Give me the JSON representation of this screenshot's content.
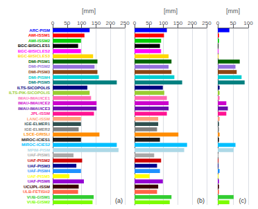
{
  "chart_data": [
    {
      "type": "bar",
      "orientation": "horizontal",
      "categories": [
        "ARC-PISM",
        "AWI-ISSM1",
        "AWI-ISSM2",
        "BGC-BISICLES1",
        "BGC-BISICLES2",
        "BGC-BISICLES3",
        "DMI-PISM1",
        "DMI-PISM2",
        "DMI-PISM3",
        "DMI-PISM4",
        "DMI-PISM5",
        "ILTS-SICOPOLIS",
        "ILTS-PIK-SICOPOLIS",
        "IMAU-IMAUICE1",
        "IMAU-IMAUICE2",
        "IMAU-IMAUICE3",
        "JPL-ISSM",
        "LANC-ISSM",
        "IGE-ELMER1",
        "IGE-ELMER2",
        "LSCE-GRISLI",
        "MIROC-ICIES1",
        "MIROC-ICIES2",
        "MPIM-PISM",
        "UAF-PISM1",
        "UAF-PISM2",
        "UAF-PISM3",
        "UAF-PISM4",
        "UAF-PISM5",
        "UAF-PISM6",
        "UCIJPL-ISSM",
        "ULB-FETISH2",
        "VUB-GISM1",
        "VUB-GISM2"
      ],
      "values": [
        128,
        110,
        98,
        88,
        98,
        140,
        155,
        145,
        155,
        160,
        222,
        120,
        128,
        133,
        152,
        152,
        143,
        98,
        98,
        90,
        162,
        98,
        222,
        228,
        72,
        102,
        82,
        98,
        58,
        108,
        90,
        88,
        142,
        138
      ],
      "colors": [
        "#0000FF",
        "#FF0000",
        "#00CC00",
        "#000000",
        "#FF00FF",
        "#FFD700",
        "#006400",
        "#9370DB",
        "#8B4513",
        "#00CED1",
        "#008080",
        "#000080",
        "#9ACD32",
        "#FF69B4",
        "#CC00CC",
        "#6A0DAD",
        "#FF1493",
        "#FFA07A",
        "#2F4F4F",
        "#808080",
        "#FF8C00",
        "#1C1C1C",
        "#00BFFF",
        "#ADD8E6",
        "#A9A9A9",
        "#CC0000",
        "#00008B",
        "#1E90FF",
        "#FFFF00",
        "#9400D3",
        "#3B0000",
        "#FF6347",
        "#32CD32",
        "#7CFC00"
      ],
      "xlabel": "[mm]",
      "xlim": [
        0,
        250
      ],
      "xticks": [
        0,
        50,
        100,
        150,
        200,
        250
      ],
      "grid": true,
      "annotation": "(a)"
    },
    {
      "type": "bar",
      "orientation": "horizontal",
      "categories": [
        "ARC-PISM",
        "AWI-ISSM1",
        "AWI-ISSM2",
        "BGC-BISICLES1",
        "BGC-BISICLES2",
        "BGC-BISICLES3",
        "DMI-PISM1",
        "DMI-PISM2",
        "DMI-PISM3",
        "DMI-PISM4",
        "DMI-PISM5",
        "ILTS-SICOPOLIS",
        "ILTS-PIK-SICOPOLIS",
        "IMAU-IMAUICE1",
        "IMAU-IMAUICE2",
        "IMAU-IMAUICE3",
        "JPL-ISSM",
        "LANC-ISSM",
        "IGE-ELMER1",
        "IGE-ELMER2",
        "LSCE-GRISLI",
        "MIROC-ICIES1",
        "MIROC-ICIES2",
        "MPIM-PISM",
        "UAF-PISM1",
        "UAF-PISM2",
        "UAF-PISM3",
        "UAF-PISM4",
        "UAF-PISM5",
        "UAF-PISM6",
        "UCIJPL-ISSM",
        "ULB-FETISH2",
        "VUB-GISM1",
        "VUB-GISM2"
      ],
      "values": [
        112,
        102,
        92,
        88,
        92,
        118,
        128,
        118,
        128,
        138,
        165,
        98,
        103,
        112,
        118,
        118,
        112,
        82,
        82,
        78,
        152,
        88,
        182,
        172,
        68,
        92,
        78,
        88,
        52,
        98,
        82,
        78,
        128,
        122
      ],
      "colors": [
        "#0000FF",
        "#FF0000",
        "#00CC00",
        "#000000",
        "#FF00FF",
        "#FFD700",
        "#006400",
        "#9370DB",
        "#8B4513",
        "#00CED1",
        "#008080",
        "#000080",
        "#9ACD32",
        "#FF69B4",
        "#CC00CC",
        "#6A0DAD",
        "#FF1493",
        "#FFA07A",
        "#2F4F4F",
        "#808080",
        "#FF8C00",
        "#1C1C1C",
        "#00BFFF",
        "#ADD8E6",
        "#A9A9A9",
        "#CC0000",
        "#00008B",
        "#1E90FF",
        "#FFFF00",
        "#9400D3",
        "#3B0000",
        "#FF6347",
        "#32CD32",
        "#7CFC00"
      ],
      "xlabel": "[mm]",
      "xlim": [
        0,
        250
      ],
      "xticks": [
        0,
        50,
        100,
        150,
        200,
        250
      ],
      "grid": true,
      "annotation": "(b)",
      "tick_labels": "x"
    },
    {
      "type": "bar",
      "orientation": "horizontal",
      "categories": [
        "ARC-PISM",
        "AWI-ISSM1",
        "AWI-ISSM2",
        "BGC-BISICLES1",
        "BGC-BISICLES2",
        "BGC-BISICLES3",
        "DMI-PISM1",
        "DMI-PISM2",
        "DMI-PISM3",
        "DMI-PISM4",
        "DMI-PISM5",
        "ILTS-SICOPOLIS",
        "ILTS-PIK-SICOPOLIS",
        "IMAU-IMAUICE1",
        "IMAU-IMAUICE2",
        "IMAU-IMAUICE3",
        "JPL-ISSM",
        "LANC-ISSM",
        "IGE-ELMER1",
        "IGE-ELMER2",
        "LSCE-GRISLI",
        "MIROC-ICIES1",
        "MIROC-ICIES2",
        "MPIM-PISM",
        "UAF-PISM1",
        "UAF-PISM2",
        "UAF-PISM3",
        "UAF-PISM4",
        "UAF-PISM5",
        "UAF-PISM6",
        "UCIJPL-ISSM",
        "ULB-FETISH2",
        "VUB-GISM1",
        "VUB-GISM2"
      ],
      "values": [
        38,
        4,
        4,
        2,
        2,
        2,
        72,
        58,
        62,
        78,
        88,
        6,
        6,
        6,
        28,
        33,
        28,
        6,
        4,
        4,
        6,
        4,
        58,
        52,
        2,
        2,
        2,
        6,
        2,
        4,
        4,
        4,
        52,
        38
      ],
      "colors": [
        "#0000FF",
        "#FF0000",
        "#00CC00",
        "#000000",
        "#FF00FF",
        "#FFD700",
        "#006400",
        "#9370DB",
        "#8B4513",
        "#00CED1",
        "#008080",
        "#000080",
        "#9ACD32",
        "#FF69B4",
        "#CC00CC",
        "#6A0DAD",
        "#FF1493",
        "#FFA07A",
        "#2F4F4F",
        "#808080",
        "#FF8C00",
        "#1C1C1C",
        "#00BFFF",
        "#ADD8E6",
        "#A9A9A9",
        "#CC0000",
        "#00008B",
        "#1E90FF",
        "#FFFF00",
        "#9400D3",
        "#3B0000",
        "#FF6347",
        "#32CD32",
        "#7CFC00"
      ],
      "xlabel": "[mm]",
      "xlim": [
        0,
        100
      ],
      "xticks": [
        0,
        50,
        100
      ],
      "grid": true,
      "annotation": "(c)",
      "tick_labels": "x"
    }
  ]
}
